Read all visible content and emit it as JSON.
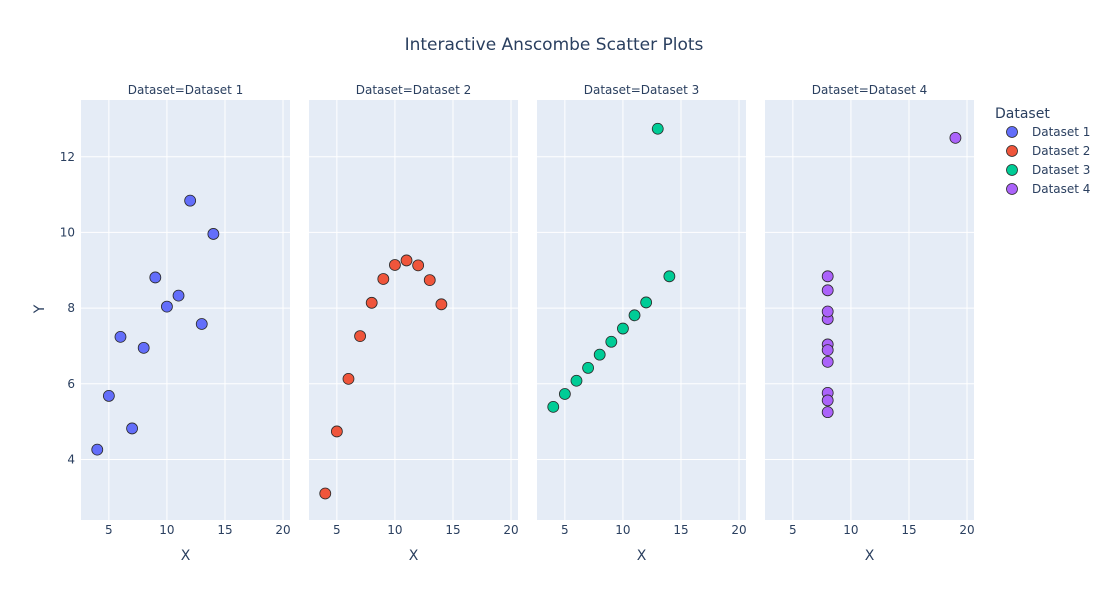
{
  "chart_data": {
    "type": "scatter",
    "title": "Interactive Anscombe Scatter Plots",
    "xlabel": "X",
    "ylabel": "Y",
    "xlim": [
      2.6,
      20.6
    ],
    "ylim": [
      2.4,
      13.5
    ],
    "xticks": [
      5,
      10,
      15,
      20
    ],
    "yticks": [
      4,
      6,
      8,
      10,
      12
    ],
    "legend": {
      "title": "Dataset",
      "placement": "right"
    },
    "series": [
      {
        "name": "Dataset 1",
        "facet_label": "Dataset=Dataset 1",
        "color": "#636efa",
        "x": [
          10,
          8,
          13,
          9,
          11,
          14,
          6,
          4,
          12,
          7,
          5
        ],
        "y": [
          8.04,
          6.95,
          7.58,
          8.81,
          8.33,
          9.96,
          7.24,
          4.26,
          10.84,
          4.82,
          5.68
        ]
      },
      {
        "name": "Dataset 2",
        "facet_label": "Dataset=Dataset 2",
        "color": "#ef553b",
        "x": [
          10,
          8,
          13,
          9,
          11,
          14,
          6,
          4,
          12,
          7,
          5
        ],
        "y": [
          9.14,
          8.14,
          8.74,
          8.77,
          9.26,
          8.1,
          6.13,
          3.1,
          9.13,
          7.26,
          4.74
        ]
      },
      {
        "name": "Dataset 3",
        "facet_label": "Dataset=Dataset 3",
        "color": "#00cc96",
        "x": [
          10,
          8,
          13,
          9,
          11,
          14,
          6,
          4,
          12,
          7,
          5
        ],
        "y": [
          7.46,
          6.77,
          12.74,
          7.11,
          7.81,
          8.84,
          6.08,
          5.39,
          8.15,
          6.42,
          5.73
        ]
      },
      {
        "name": "Dataset 4",
        "facet_label": "Dataset=Dataset 4",
        "color": "#ab63fa",
        "x": [
          8,
          8,
          8,
          8,
          8,
          8,
          8,
          19,
          8,
          8,
          8
        ],
        "y": [
          6.58,
          5.76,
          7.71,
          8.84,
          8.47,
          7.04,
          5.25,
          12.5,
          5.56,
          7.91,
          6.89
        ]
      }
    ]
  }
}
